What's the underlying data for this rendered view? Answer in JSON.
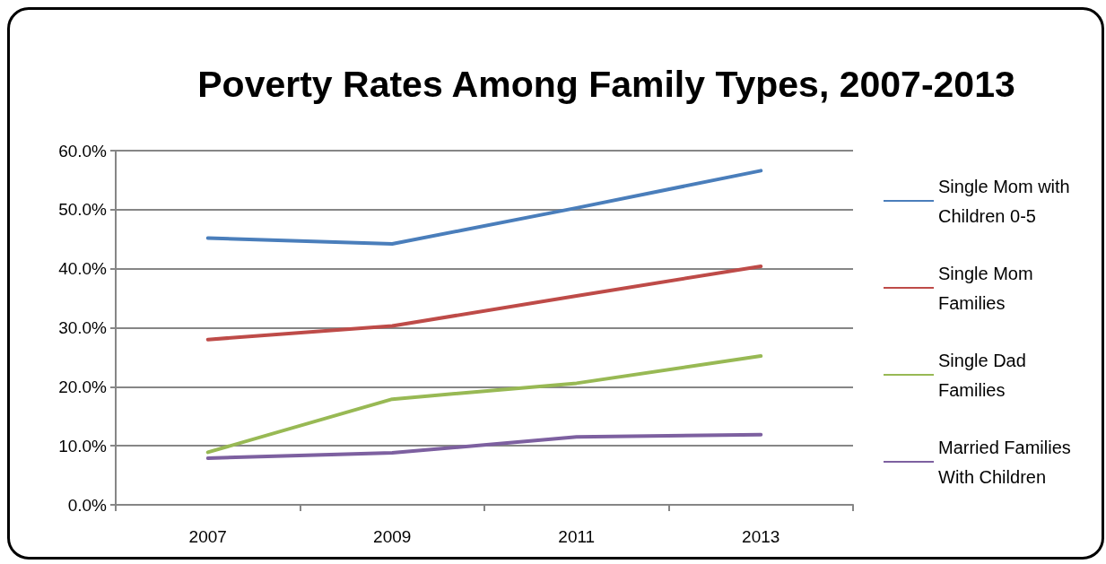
{
  "chart_data": {
    "type": "line",
    "title": "Poverty Rates Among Family Types, 2007-2013",
    "categories": [
      "2007",
      "2009",
      "2011",
      "2013"
    ],
    "series": [
      {
        "name": "Single Mom with Children 0-5",
        "color": "#4a7ebb",
        "values": [
          45.2,
          44.2,
          50.3,
          56.6
        ]
      },
      {
        "name": "Single Mom Families",
        "color": "#be4b48",
        "values": [
          28.0,
          30.3,
          35.4,
          40.4
        ]
      },
      {
        "name": "Single Dad Families",
        "color": "#98b954",
        "values": [
          8.9,
          17.9,
          20.6,
          25.2
        ]
      },
      {
        "name": "Married Families With Children",
        "color": "#7d60a0",
        "values": [
          7.9,
          8.8,
          11.5,
          11.9
        ]
      }
    ],
    "ylim": [
      0,
      60
    ],
    "yticks": [
      {
        "value": 0,
        "label": "0.0%"
      },
      {
        "value": 10,
        "label": "10.0%"
      },
      {
        "value": 20,
        "label": "20.0%"
      },
      {
        "value": 30,
        "label": "30.0%"
      },
      {
        "value": 40,
        "label": "40.0%"
      },
      {
        "value": 50,
        "label": "50.0%"
      },
      {
        "value": 60,
        "label": "60.0%"
      }
    ],
    "grid": "y",
    "legend": "right",
    "marker": "none",
    "line_style": "solid"
  }
}
